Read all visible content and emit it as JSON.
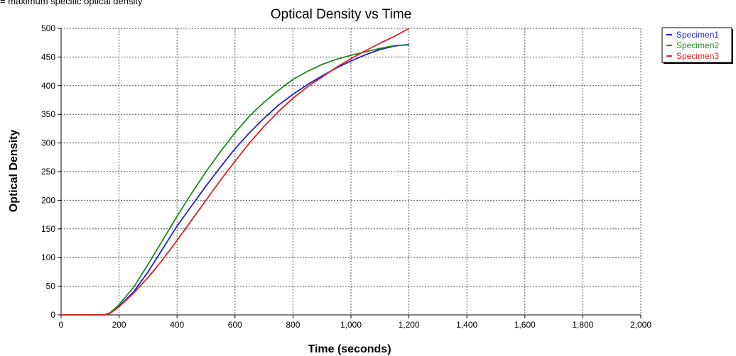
{
  "caption": "= maximum specific optical density",
  "chart_data": {
    "type": "line",
    "title": "Optical Density vs Time",
    "xlabel": "Time (seconds)",
    "ylabel": "Optical Density",
    "xlim": [
      0,
      2000
    ],
    "ylim": [
      0,
      500
    ],
    "x_ticks": [
      0,
      200,
      400,
      600,
      800,
      1000,
      1200,
      1400,
      1600,
      1800,
      2000
    ],
    "x_tick_labels": [
      "0",
      "200",
      "400",
      "600",
      "800",
      "1,000",
      "1,200",
      "1,400",
      "1,600",
      "1,800",
      "2,000"
    ],
    "y_ticks": [
      0,
      50,
      100,
      150,
      200,
      250,
      300,
      350,
      400,
      450,
      500
    ],
    "y_tick_labels": [
      "0",
      "50",
      "100",
      "150",
      "200",
      "250",
      "300",
      "350",
      "400",
      "450",
      "500"
    ],
    "grid": true,
    "legend_position": "top-right",
    "series": [
      {
        "name": "Specimen1",
        "color": "#1f1fd6",
        "x": [
          0,
          150,
          170,
          200,
          250,
          300,
          350,
          400,
          450,
          500,
          550,
          600,
          650,
          700,
          750,
          800,
          850,
          900,
          950,
          1000,
          1050,
          1100,
          1150,
          1200
        ],
        "y": [
          0,
          0,
          3,
          15,
          40,
          75,
          115,
          155,
          190,
          225,
          258,
          290,
          318,
          343,
          366,
          385,
          402,
          417,
          431,
          443,
          454,
          463,
          469,
          472
        ]
      },
      {
        "name": "Specimen2",
        "color": "#1f8a1f",
        "x": [
          0,
          150,
          170,
          200,
          250,
          300,
          350,
          400,
          450,
          500,
          550,
          600,
          650,
          700,
          750,
          800,
          850,
          900,
          950,
          1000,
          1050,
          1100,
          1150,
          1200
        ],
        "y": [
          0,
          0,
          4,
          18,
          48,
          88,
          130,
          172,
          212,
          250,
          285,
          318,
          347,
          371,
          392,
          411,
          425,
          437,
          446,
          453,
          459,
          465,
          470,
          471
        ]
      },
      {
        "name": "Specimen3",
        "color": "#e01f1f",
        "x": [
          0,
          150,
          170,
          200,
          250,
          300,
          350,
          400,
          450,
          500,
          550,
          600,
          650,
          700,
          750,
          800,
          850,
          900,
          950,
          1000,
          1050,
          1100,
          1150,
          1200
        ],
        "y": [
          0,
          0,
          3,
          14,
          38,
          65,
          96,
          130,
          165,
          200,
          235,
          268,
          300,
          329,
          355,
          378,
          398,
          415,
          432,
          447,
          461,
          474,
          486,
          500
        ]
      }
    ]
  }
}
